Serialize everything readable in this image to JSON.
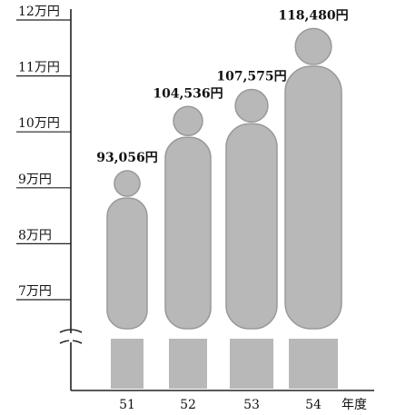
{
  "chart_data": {
    "type": "pictogram",
    "categories": [
      "51",
      "52",
      "53",
      "54"
    ],
    "x_label": "年度",
    "values": [
      93056,
      104536,
      107575,
      118480
    ],
    "value_labels": [
      "93,056円",
      "104,536円",
      "107,575円",
      "118,480円"
    ],
    "ylim": [
      70000,
      120000
    ],
    "yticks": [
      {
        "value": 70000,
        "label": "7万円"
      },
      {
        "value": 80000,
        "label": "8万円"
      },
      {
        "value": 90000,
        "label": "9万円"
      },
      {
        "value": 100000,
        "label": "10万円"
      },
      {
        "value": 110000,
        "label": "11万円"
      },
      {
        "value": 120000,
        "label": "12万円"
      }
    ],
    "axis_break": true,
    "color": "#b8b8b8"
  }
}
